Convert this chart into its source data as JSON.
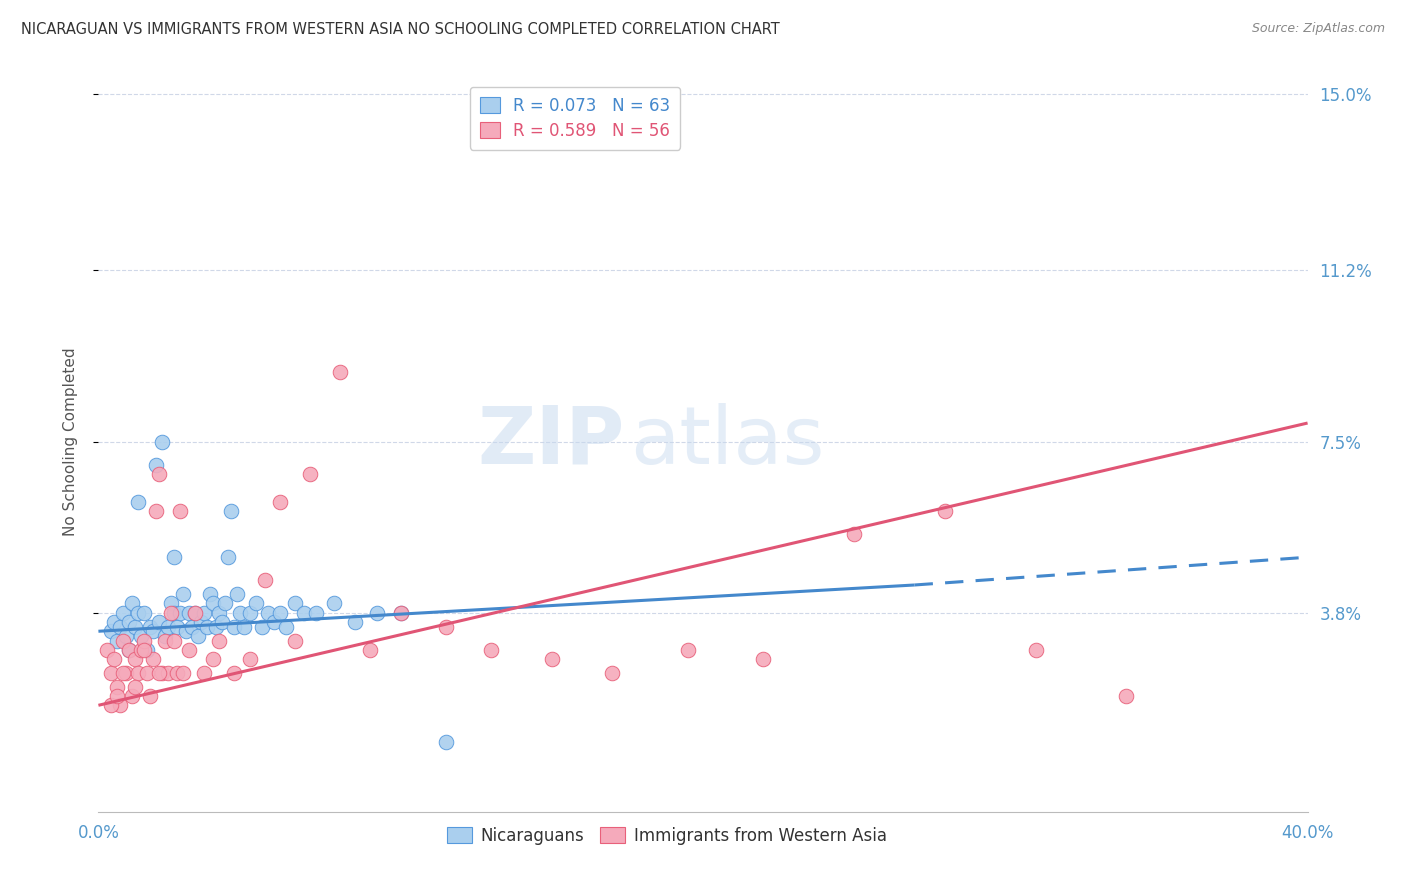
{
  "title": "NICARAGUAN VS IMMIGRANTS FROM WESTERN ASIA NO SCHOOLING COMPLETED CORRELATION CHART",
  "source": "Source: ZipAtlas.com",
  "ylabel": "No Schooling Completed",
  "xlim": [
    0.0,
    0.4
  ],
  "ylim": [
    -0.005,
    0.155
  ],
  "yticks": [
    0.038,
    0.075,
    0.112,
    0.15
  ],
  "ytick_labels": [
    "3.8%",
    "7.5%",
    "11.2%",
    "15.0%"
  ],
  "xticks": [
    0.0,
    0.1,
    0.2,
    0.3,
    0.4
  ],
  "xtick_labels": [
    "0.0%",
    "",
    "",
    "",
    "40.0%"
  ],
  "background_color": "#ffffff",
  "grid_color": "#d0d8e8",
  "blue_fill": "#aacfee",
  "pink_fill": "#f5aabb",
  "blue_edge": "#5599dd",
  "pink_edge": "#e8607a",
  "blue_line_color": "#4488cc",
  "pink_line_color": "#e05575",
  "right_axis_color": "#5599cc",
  "tick_color": "#5599cc",
  "legend_line1": "R = 0.073   N = 63",
  "legend_line2": "R = 0.589   N = 56",
  "watermark": "ZIPatlas",
  "series1_label": "Nicaraguans",
  "series2_label": "Immigrants from Western Asia",
  "blue_trendline_solid": [
    0.0,
    0.034,
    0.27,
    0.044
  ],
  "blue_trendline_dashed": [
    0.27,
    0.044,
    0.4,
    0.05
  ],
  "pink_trendline": [
    0.0,
    0.018,
    0.4,
    0.079
  ],
  "blue_x": [
    0.004,
    0.005,
    0.006,
    0.007,
    0.008,
    0.009,
    0.01,
    0.01,
    0.011,
    0.012,
    0.013,
    0.013,
    0.014,
    0.015,
    0.016,
    0.017,
    0.018,
    0.019,
    0.02,
    0.021,
    0.022,
    0.023,
    0.024,
    0.025,
    0.025,
    0.026,
    0.027,
    0.028,
    0.029,
    0.03,
    0.031,
    0.032,
    0.033,
    0.034,
    0.035,
    0.036,
    0.037,
    0.038,
    0.039,
    0.04,
    0.041,
    0.042,
    0.043,
    0.044,
    0.045,
    0.046,
    0.047,
    0.048,
    0.05,
    0.052,
    0.054,
    0.056,
    0.058,
    0.06,
    0.062,
    0.065,
    0.068,
    0.072,
    0.078,
    0.085,
    0.092,
    0.1,
    0.115
  ],
  "blue_y": [
    0.034,
    0.036,
    0.032,
    0.035,
    0.038,
    0.033,
    0.036,
    0.03,
    0.04,
    0.035,
    0.038,
    0.062,
    0.033,
    0.038,
    0.03,
    0.035,
    0.034,
    0.07,
    0.036,
    0.075,
    0.033,
    0.035,
    0.04,
    0.038,
    0.05,
    0.035,
    0.038,
    0.042,
    0.034,
    0.038,
    0.035,
    0.038,
    0.033,
    0.036,
    0.038,
    0.035,
    0.042,
    0.04,
    0.035,
    0.038,
    0.036,
    0.04,
    0.05,
    0.06,
    0.035,
    0.042,
    0.038,
    0.035,
    0.038,
    0.04,
    0.035,
    0.038,
    0.036,
    0.038,
    0.035,
    0.04,
    0.038,
    0.038,
    0.04,
    0.036,
    0.038,
    0.038,
    0.01
  ],
  "pink_x": [
    0.003,
    0.004,
    0.005,
    0.006,
    0.007,
    0.008,
    0.009,
    0.01,
    0.011,
    0.012,
    0.013,
    0.014,
    0.015,
    0.016,
    0.017,
    0.018,
    0.019,
    0.02,
    0.021,
    0.022,
    0.023,
    0.024,
    0.025,
    0.026,
    0.027,
    0.028,
    0.03,
    0.032,
    0.035,
    0.038,
    0.04,
    0.045,
    0.05,
    0.055,
    0.06,
    0.065,
    0.07,
    0.08,
    0.09,
    0.1,
    0.115,
    0.13,
    0.15,
    0.17,
    0.195,
    0.22,
    0.25,
    0.28,
    0.31,
    0.34,
    0.004,
    0.006,
    0.008,
    0.012,
    0.015,
    0.02
  ],
  "pink_y": [
    0.03,
    0.025,
    0.028,
    0.022,
    0.018,
    0.032,
    0.025,
    0.03,
    0.02,
    0.028,
    0.025,
    0.03,
    0.032,
    0.025,
    0.02,
    0.028,
    0.06,
    0.068,
    0.025,
    0.032,
    0.025,
    0.038,
    0.032,
    0.025,
    0.06,
    0.025,
    0.03,
    0.038,
    0.025,
    0.028,
    0.032,
    0.025,
    0.028,
    0.045,
    0.062,
    0.032,
    0.068,
    0.09,
    0.03,
    0.038,
    0.035,
    0.03,
    0.028,
    0.025,
    0.03,
    0.028,
    0.055,
    0.06,
    0.03,
    0.02,
    0.018,
    0.02,
    0.025,
    0.022,
    0.03,
    0.025
  ]
}
